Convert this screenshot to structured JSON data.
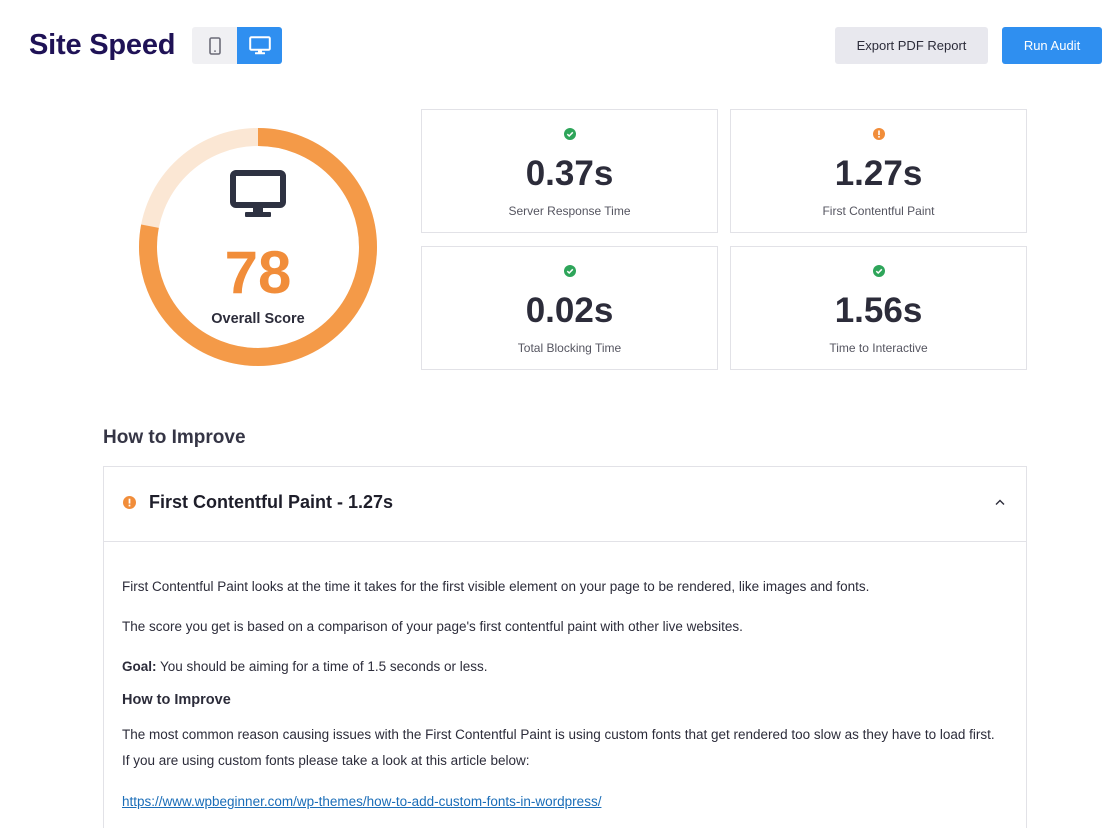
{
  "header": {
    "title": "Site Speed",
    "device_toggle": {
      "mobile_icon": "mobile-icon",
      "desktop_icon": "desktop-icon",
      "active": "desktop"
    },
    "export_label": "Export PDF Report",
    "run_label": "Run Audit"
  },
  "score": {
    "value": "78",
    "value_fraction": 0.78,
    "label": "Overall Score",
    "icon": "desktop-icon"
  },
  "metrics": [
    {
      "value": "0.37s",
      "label": "Server Response Time",
      "status": "good",
      "icon": "check-circle-icon"
    },
    {
      "value": "1.27s",
      "label": "First Contentful Paint",
      "status": "warning",
      "icon": "info-circle-icon"
    },
    {
      "value": "0.02s",
      "label": "Total Blocking Time",
      "status": "good",
      "icon": "check-circle-icon"
    },
    {
      "value": "1.56s",
      "label": "Time to Interactive",
      "status": "good",
      "icon": "check-circle-icon"
    }
  ],
  "improve": {
    "title": "How to Improve",
    "item": {
      "title": "First Contentful Paint - 1.27s",
      "status": "warning",
      "expanded": true,
      "paragraphs": [
        "First Contentful Paint looks at the time it takes for the first visible element on your page to be rendered, like images and fonts.",
        "The score you get is based on a comparison of your page's first contentful paint with other live websites."
      ],
      "goal_label": "Goal:",
      "goal_text": " You should be aiming for a time of 1.5 seconds or less.",
      "subheading": "How to Improve",
      "detail": "The most common reason causing issues with the First Contentful Paint is using custom fonts that get rendered too slow as they have to load first. If you are using custom fonts please take a look at this article below:",
      "link": "https://www.wpbeginner.com/wp-themes/how-to-add-custom-fonts-in-wordpress/"
    }
  },
  "colors": {
    "accent": "#2f8ff0",
    "title": "#1f1256",
    "score": "#f18d3a",
    "score_track": "#fbe7d4",
    "good": "#2ea55a",
    "warning": "#f18d3a"
  }
}
